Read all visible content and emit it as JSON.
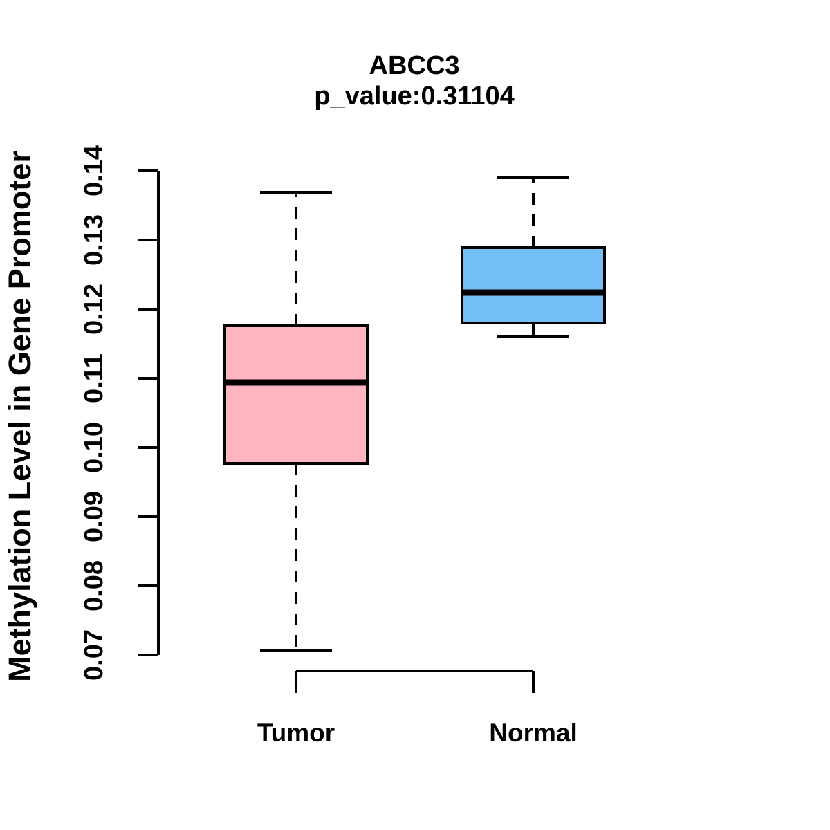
{
  "chart_data": {
    "type": "boxplot",
    "title": "ABCC3",
    "subtitle": "p_value:0.31104",
    "ylabel": "Methylation Level in Gene Promoter",
    "categories": [
      "Tumor",
      "Normal"
    ],
    "ylim": [
      0.07,
      0.14
    ],
    "y_ticks": [
      0.07,
      0.08,
      0.09,
      0.1,
      0.11,
      0.12,
      0.13,
      0.14
    ],
    "y_tick_labels": [
      "0.07",
      "0.08",
      "0.09",
      "0.10",
      "0.11",
      "0.12",
      "0.13",
      "0.14"
    ],
    "grid": false,
    "legend": "none",
    "series": [
      {
        "name": "Tumor",
        "fill_color": "#FFB6C1",
        "stroke_color": "#000000",
        "whisker_low": 0.0706,
        "q1": 0.0977,
        "median": 0.1094,
        "q3": 0.1176,
        "whisker_high": 0.1369,
        "outliers": []
      },
      {
        "name": "Normal",
        "fill_color": "#74BFF5",
        "stroke_color": "#000000",
        "whisker_low": 0.1161,
        "q1": 0.118,
        "median": 0.1224,
        "q3": 0.1289,
        "whisker_high": 0.139,
        "outliers": []
      }
    ]
  }
}
